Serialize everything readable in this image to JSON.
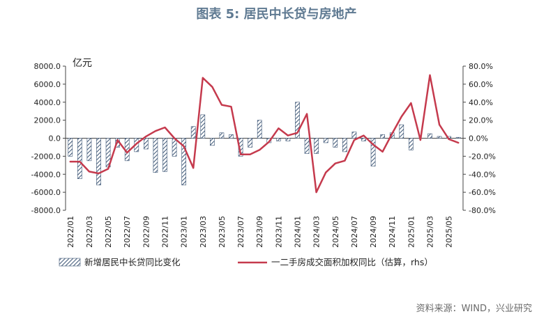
{
  "title": "图表 5: 居民中长贷与房地产",
  "source": "资料来源：WIND，兴业研究",
  "colors": {
    "line": "#c53a4d",
    "bar_stroke": "#3b5474",
    "title": "#5f7a92"
  },
  "chart_data": {
    "type": "bar",
    "title": "图表 5: 居民中长贷与房地产",
    "unit_label": "亿元",
    "categories": [
      "2022/01",
      "2022/02",
      "2022/03",
      "2022/04",
      "2022/05",
      "2022/06",
      "2022/07",
      "2022/08",
      "2022/09",
      "2022/10",
      "2022/11",
      "2022/12",
      "2023/01",
      "2023/02",
      "2023/03",
      "2023/04",
      "2023/05",
      "2023/06",
      "2023/07",
      "2023/08",
      "2023/09",
      "2023/10",
      "2023/11",
      "2023/12",
      "2024/01",
      "2024/02",
      "2024/03",
      "2024/04",
      "2024/05",
      "2024/06",
      "2024/07",
      "2024/08",
      "2024/09",
      "2024/10",
      "2024/11",
      "2024/12",
      "2025/01",
      "2025/02",
      "2025/03",
      "2025/04",
      "2025/05",
      "2025/06"
    ],
    "tick_labels": [
      "2022/01",
      "2022/03",
      "2022/05",
      "2022/07",
      "2022/09",
      "2022/11",
      "2023/01",
      "2023/03",
      "2023/05",
      "2023/07",
      "2023/09",
      "2023/11",
      "2024/01",
      "2024/03",
      "2024/05",
      "2024/07",
      "2024/09",
      "2024/11",
      "2025/01",
      "2025/03",
      "2025/05"
    ],
    "left_axis": {
      "ylim": [
        -8000,
        8000
      ],
      "ticks": [
        "8000.0",
        "6000.0",
        "4000.0",
        "2000.0",
        "0.0",
        "-2000.0",
        "-4000.0",
        "-6000.0",
        "-8000.0"
      ]
    },
    "right_axis": {
      "ylim": [
        -80,
        80
      ],
      "ticks": [
        "80.0%",
        "60.0%",
        "40.0%",
        "20.0%",
        "0.0%",
        "-20.0%",
        "-40.0%",
        "-60.0%",
        "-80.0%"
      ]
    },
    "series": [
      {
        "name": "新增居民中长贷同比变化",
        "type": "bar",
        "axis": "left",
        "values": [
          -2000,
          -4500,
          -2500,
          -5200,
          -3200,
          -1000,
          -2500,
          -1500,
          -1200,
          -3800,
          -3700,
          -2000,
          -5200,
          1300,
          2600,
          -800,
          600,
          400,
          -2000,
          -1000,
          2000,
          -500,
          -300,
          -300,
          4000,
          -1700,
          -1700,
          -500,
          -1000,
          -1500,
          700,
          -300,
          -3100,
          400,
          600,
          1500,
          -1300,
          0,
          500,
          200,
          200,
          100
        ]
      },
      {
        "name": "一二手房成交面积加权同比（估算，rhs）",
        "type": "line",
        "axis": "right",
        "values": [
          -26,
          -26,
          -37,
          -39,
          -34,
          -2,
          -16,
          -6,
          2,
          8,
          12,
          0,
          -9,
          -33,
          67,
          57,
          37,
          35,
          -18,
          -18,
          -13,
          -4,
          11,
          3,
          6,
          27,
          -60,
          -38,
          -28,
          -25,
          -2,
          3,
          -7,
          -15,
          5,
          24,
          39,
          -2,
          70,
          15,
          -1,
          -5
        ]
      }
    ]
  }
}
